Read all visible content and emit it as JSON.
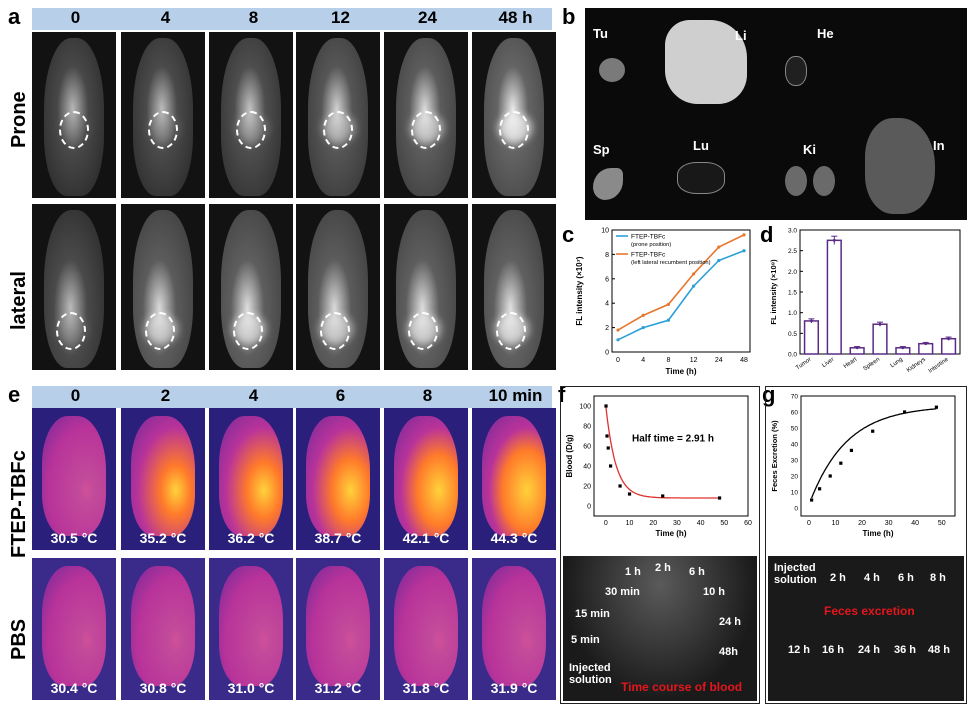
{
  "panels": {
    "a": "a",
    "b": "b",
    "c": "c",
    "d": "d",
    "e": "e",
    "f": "f",
    "g": "g"
  },
  "panel_a": {
    "timepoints": [
      "0",
      "4",
      "8",
      "12",
      "24",
      "48 h"
    ],
    "rows": [
      "Prone",
      "lateral"
    ],
    "signal_prone": [
      0.05,
      0.1,
      0.2,
      0.4,
      0.55,
      0.75
    ],
    "signal_lateral": [
      0.1,
      0.55,
      0.6,
      0.55,
      0.6,
      0.65
    ]
  },
  "panel_b": {
    "organs": [
      "Tu",
      "Li",
      "He",
      "Sp",
      "Lu",
      "Ki",
      "In"
    ]
  },
  "panel_e": {
    "timepoints": [
      "0",
      "2",
      "4",
      "6",
      "8",
      "10 min"
    ],
    "rows": [
      "FTEP-TBFc",
      "PBS"
    ],
    "temps_ftep": [
      "30.5 °C",
      "35.2 °C",
      "36.2 °C",
      "38.7 °C",
      "42.1 °C",
      "44.3 °C"
    ],
    "temps_pbs": [
      "30.4 °C",
      "30.8 °C",
      "31.0 °C",
      "31.2 °C",
      "31.8 °C",
      "31.9 °C"
    ]
  },
  "chart_data": [
    {
      "id": "c",
      "type": "line",
      "xlabel": "Time (h)",
      "ylabel": "FL intensity (×10⁷)",
      "categories": [
        "0",
        "4",
        "8",
        "12",
        "24",
        "48"
      ],
      "ylim": [
        0,
        10
      ],
      "yticks": [
        "0",
        "2",
        "4",
        "6",
        "8",
        "10"
      ],
      "series": [
        {
          "name": "FTEP-TBFc (prone position)",
          "legend_line1": "FTEP-TBFc",
          "legend_line2": "(prone position)",
          "color": "#2aa0d8",
          "values": [
            1.0,
            2.0,
            2.6,
            5.4,
            7.5,
            8.3
          ]
        },
        {
          "name": "FTEP-TBFc (left lateral recumbent position)",
          "legend_line1": "FTEP-TBFc",
          "legend_line2": "(left lateral recumbent position)",
          "color": "#e8772e",
          "values": [
            1.8,
            3.0,
            3.9,
            6.4,
            8.6,
            9.6
          ]
        }
      ]
    },
    {
      "id": "d",
      "type": "bar",
      "ylabel": "FL intensity (×10⁸)",
      "categories": [
        "Tumor",
        "Liver",
        "Heart",
        "Spleen",
        "Lung",
        "Kidneys",
        "Intestine"
      ],
      "values": [
        0.8,
        2.75,
        0.15,
        0.72,
        0.15,
        0.25,
        0.37
      ],
      "errors": [
        0.05,
        0.1,
        0.03,
        0.05,
        0.03,
        0.03,
        0.04
      ],
      "ylim": [
        0,
        3.0
      ],
      "yticks": [
        "0.0",
        "0.5",
        "1.0",
        "1.5",
        "2.0",
        "2.5",
        "3.0"
      ],
      "color": "#5b2a86"
    },
    {
      "id": "f",
      "type": "scatter",
      "xlabel": "Time (h)",
      "ylabel": "Blood (D/g)",
      "annotation": "Half time = 2.91 h",
      "x": [
        0.08,
        0.5,
        1,
        2,
        6,
        10,
        24,
        48
      ],
      "y": [
        100,
        70,
        58,
        40,
        20,
        12,
        10,
        8
      ],
      "xlim": [
        -5,
        60
      ],
      "ylim": [
        -10,
        110
      ],
      "xticks": [
        "0",
        "10",
        "20",
        "30",
        "40",
        "50",
        "60"
      ],
      "yticks": [
        "0",
        "20",
        "40",
        "60",
        "80",
        "100"
      ],
      "color": "#e0312d"
    },
    {
      "id": "g",
      "type": "scatter",
      "xlabel": "Time (h)",
      "ylabel": "Feces Excretion (%)",
      "x": [
        1,
        4,
        8,
        12,
        16,
        24,
        36,
        48
      ],
      "y": [
        5,
        12,
        20,
        28,
        36,
        48,
        60,
        63
      ],
      "xlim": [
        -3,
        55
      ],
      "ylim": [
        -5,
        70
      ],
      "xticks": [
        "0",
        "10",
        "20",
        "30",
        "40",
        "50"
      ],
      "yticks": [
        "0",
        "10",
        "20",
        "30",
        "40",
        "50",
        "60",
        "70"
      ],
      "color": "#000000"
    }
  ],
  "panel_f_photo": {
    "labels": [
      "1 h",
      "2 h",
      "6 h",
      "30 min",
      "10 h",
      "15 min",
      "24 h",
      "5 min",
      "48h",
      "Injected solution"
    ],
    "caption": "Time course of blood"
  },
  "panel_g_photo": {
    "top_labels": [
      "Injected solution",
      "2 h",
      "4 h",
      "6 h",
      "8 h"
    ],
    "caption": "Feces excretion",
    "bottom_labels": [
      "12 h",
      "16 h",
      "24 h",
      "36 h",
      "48 h"
    ]
  }
}
